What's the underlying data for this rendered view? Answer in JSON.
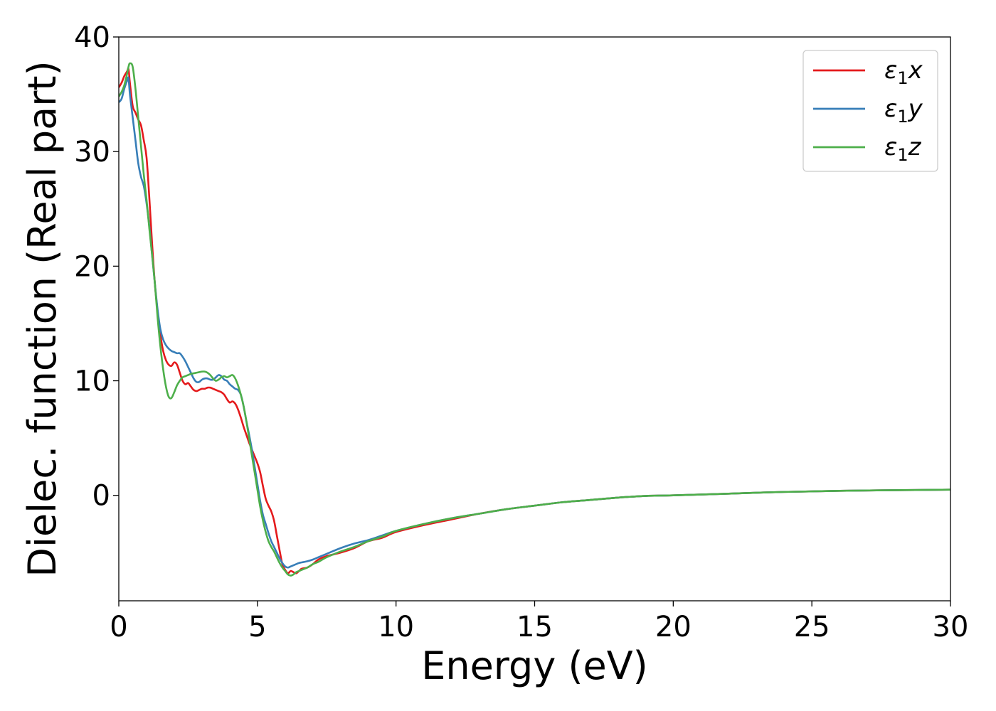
{
  "chart_data": {
    "type": "line",
    "title": "",
    "xlabel": "Energy (eV)",
    "ylabel": "Dielec. function (Real part)",
    "xlim": [
      0,
      30
    ],
    "ylim": [
      -9.2,
      40
    ],
    "xticks": [
      0,
      5,
      10,
      15,
      20,
      25,
      30
    ],
    "yticks": [
      0,
      10,
      20,
      30,
      40
    ],
    "grid": false,
    "legend_position": "top-right",
    "series": [
      {
        "name": "ε₁x",
        "legend_main": "ε",
        "legend_sub": "1",
        "legend_var": "x",
        "color": "#e41a1c",
        "x": [
          0,
          0.1,
          0.2,
          0.3,
          0.35,
          0.4,
          0.5,
          0.6,
          0.7,
          0.8,
          0.9,
          1.0,
          1.1,
          1.2,
          1.3,
          1.4,
          1.5,
          1.6,
          1.7,
          1.8,
          1.9,
          2.0,
          2.1,
          2.2,
          2.3,
          2.4,
          2.5,
          2.6,
          2.7,
          2.8,
          2.9,
          3.0,
          3.1,
          3.2,
          3.3,
          3.4,
          3.5,
          3.6,
          3.7,
          3.8,
          3.9,
          4.0,
          4.1,
          4.2,
          4.3,
          4.4,
          4.5,
          4.6,
          4.7,
          4.8,
          4.9,
          5.0,
          5.1,
          5.2,
          5.3,
          5.4,
          5.5,
          5.6,
          5.7,
          5.8,
          5.9,
          6.0,
          6.1,
          6.2,
          6.3,
          6.4,
          6.5,
          6.6,
          6.8,
          7.0,
          7.2,
          7.5,
          8.0,
          8.5,
          9.0,
          9.5,
          10.0,
          11.0,
          12.0,
          13.0,
          14.0,
          15.0,
          16.0,
          17.0,
          18.0,
          19.0,
          20.0,
          22.0,
          24.0,
          26.0,
          28.0,
          30.0
        ],
        "y": [
          35.6,
          36.0,
          36.6,
          37.0,
          37.2,
          36.0,
          34.0,
          33.4,
          32.8,
          32.3,
          31.0,
          29.5,
          26.0,
          22.0,
          18.5,
          16.0,
          14.0,
          12.6,
          11.8,
          11.4,
          11.3,
          11.6,
          11.4,
          10.7,
          10.0,
          9.7,
          9.8,
          9.5,
          9.2,
          9.1,
          9.2,
          9.3,
          9.3,
          9.4,
          9.4,
          9.3,
          9.2,
          9.1,
          9.0,
          8.8,
          8.4,
          8.1,
          8.2,
          8.0,
          7.5,
          6.8,
          6.0,
          5.3,
          4.6,
          4.0,
          3.4,
          2.8,
          2.0,
          0.8,
          -0.3,
          -0.9,
          -1.4,
          -2.2,
          -3.5,
          -4.8,
          -6.0,
          -6.5,
          -6.8,
          -6.6,
          -6.7,
          -6.8,
          -6.6,
          -6.4,
          -6.3,
          -6.0,
          -5.6,
          -5.3,
          -5.0,
          -4.6,
          -4.0,
          -3.7,
          -3.2,
          -2.6,
          -2.1,
          -1.6,
          -1.2,
          -0.9,
          -0.6,
          -0.4,
          -0.2,
          -0.05,
          0.0,
          0.15,
          0.3,
          0.4,
          0.45,
          0.5
        ]
      },
      {
        "name": "ε₁y",
        "legend_main": "ε",
        "legend_sub": "1",
        "legend_var": "y",
        "color": "#377eb8",
        "x": [
          0,
          0.1,
          0.2,
          0.3,
          0.35,
          0.4,
          0.5,
          0.6,
          0.7,
          0.8,
          0.9,
          1.0,
          1.1,
          1.2,
          1.3,
          1.4,
          1.5,
          1.6,
          1.7,
          1.8,
          1.9,
          2.0,
          2.1,
          2.2,
          2.3,
          2.4,
          2.5,
          2.6,
          2.7,
          2.8,
          2.9,
          3.0,
          3.1,
          3.2,
          3.3,
          3.4,
          3.5,
          3.6,
          3.7,
          3.8,
          3.9,
          4.0,
          4.1,
          4.2,
          4.3,
          4.4,
          4.5,
          4.6,
          4.7,
          4.8,
          4.9,
          5.0,
          5.1,
          5.2,
          5.3,
          5.4,
          5.5,
          5.6,
          5.7,
          5.8,
          5.9,
          6.0,
          6.1,
          6.2,
          6.3,
          6.4,
          6.5,
          6.6,
          6.8,
          7.0,
          7.2,
          7.5,
          8.0,
          8.5,
          9.0,
          9.5,
          10.0,
          11.0,
          12.0,
          13.0,
          14.0,
          15.0,
          16.0,
          17.0,
          18.0,
          19.0,
          20.0,
          22.0,
          24.0,
          26.0,
          28.0,
          30.0
        ],
        "y": [
          34.3,
          34.6,
          35.5,
          36.2,
          36.4,
          35.0,
          33.0,
          31.0,
          29.0,
          27.8,
          27.0,
          25.5,
          23.5,
          21.0,
          18.5,
          16.2,
          14.5,
          13.6,
          13.1,
          12.8,
          12.6,
          12.5,
          12.4,
          12.4,
          12.1,
          11.7,
          11.2,
          10.7,
          10.2,
          9.9,
          9.9,
          10.1,
          10.2,
          10.2,
          10.1,
          10.1,
          10.3,
          10.5,
          10.4,
          10.1,
          10.0,
          9.7,
          9.5,
          9.3,
          9.2,
          8.8,
          7.8,
          6.5,
          5.3,
          4.0,
          2.5,
          1.0,
          -0.5,
          -1.7,
          -2.5,
          -3.3,
          -4.0,
          -4.5,
          -5.0,
          -5.5,
          -5.9,
          -6.2,
          -6.3,
          -6.2,
          -6.1,
          -6.0,
          -5.9,
          -5.85,
          -5.75,
          -5.6,
          -5.4,
          -5.1,
          -4.6,
          -4.2,
          -3.9,
          -3.5,
          -3.1,
          -2.5,
          -2.0,
          -1.6,
          -1.2,
          -0.9,
          -0.6,
          -0.4,
          -0.2,
          -0.05,
          0.0,
          0.15,
          0.3,
          0.4,
          0.45,
          0.5
        ]
      },
      {
        "name": "ε₁z",
        "legend_main": "ε",
        "legend_sub": "1",
        "legend_var": "z",
        "color": "#4daf4a",
        "x": [
          0,
          0.1,
          0.2,
          0.3,
          0.35,
          0.4,
          0.5,
          0.6,
          0.7,
          0.8,
          0.9,
          1.0,
          1.1,
          1.2,
          1.3,
          1.4,
          1.5,
          1.6,
          1.7,
          1.8,
          1.9,
          2.0,
          2.1,
          2.2,
          2.3,
          2.4,
          2.5,
          2.6,
          2.7,
          2.8,
          2.9,
          3.0,
          3.1,
          3.2,
          3.3,
          3.4,
          3.5,
          3.6,
          3.7,
          3.8,
          3.9,
          4.0,
          4.1,
          4.2,
          4.3,
          4.4,
          4.5,
          4.6,
          4.7,
          4.8,
          4.9,
          5.0,
          5.1,
          5.2,
          5.3,
          5.4,
          5.5,
          5.6,
          5.7,
          5.8,
          5.9,
          6.0,
          6.1,
          6.2,
          6.3,
          6.4,
          6.5,
          6.6,
          6.8,
          7.0,
          7.2,
          7.5,
          8.0,
          8.5,
          9.0,
          9.5,
          10.0,
          11.0,
          12.0,
          13.0,
          14.0,
          15.0,
          16.0,
          17.0,
          18.0,
          19.0,
          20.0,
          22.0,
          24.0,
          26.0,
          28.0,
          30.0
        ],
        "y": [
          34.8,
          35.2,
          35.8,
          36.8,
          37.4,
          37.7,
          37.4,
          35.5,
          33.0,
          30.5,
          28.0,
          25.8,
          23.3,
          21.0,
          18.5,
          15.5,
          13.0,
          11.0,
          9.5,
          8.6,
          8.5,
          9.0,
          9.6,
          10.0,
          10.3,
          10.4,
          10.5,
          10.6,
          10.65,
          10.7,
          10.75,
          10.8,
          10.8,
          10.7,
          10.5,
          10.2,
          10.0,
          10.1,
          10.3,
          10.4,
          10.3,
          10.4,
          10.5,
          10.2,
          9.6,
          8.8,
          7.8,
          6.5,
          5.0,
          3.5,
          2.0,
          0.5,
          -1.0,
          -2.2,
          -3.2,
          -4.0,
          -4.5,
          -4.9,
          -5.4,
          -5.9,
          -6.3,
          -6.6,
          -6.9,
          -7.0,
          -6.9,
          -6.7,
          -6.6,
          -6.5,
          -6.3,
          -6.0,
          -5.8,
          -5.4,
          -4.9,
          -4.5,
          -4.0,
          -3.6,
          -3.1,
          -2.5,
          -2.0,
          -1.6,
          -1.2,
          -0.9,
          -0.6,
          -0.4,
          -0.2,
          -0.05,
          0.0,
          0.15,
          0.3,
          0.4,
          0.45,
          0.5
        ]
      }
    ]
  }
}
